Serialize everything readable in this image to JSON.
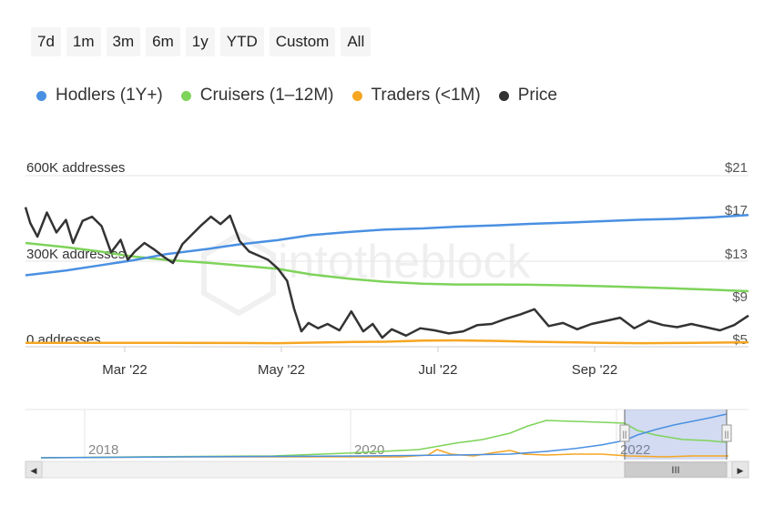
{
  "range_buttons": [
    "7d",
    "1m",
    "3m",
    "6m",
    "1y",
    "YTD",
    "Custom",
    "All"
  ],
  "legend": [
    {
      "label": "Hodlers (1Y+)",
      "color": "#4a90e2"
    },
    {
      "label": "Cruisers (1–12M)",
      "color": "#7ed35a"
    },
    {
      "label": "Traders (<1M)",
      "color": "#f5a623"
    },
    {
      "label": "Price",
      "color": "#333333"
    }
  ],
  "watermark": "intotheblock",
  "chart_data": {
    "type": "line",
    "left_axis": {
      "ticks": [
        "600K addresses",
        "300K addresses",
        "0 addresses"
      ],
      "range": [
        0,
        600000
      ]
    },
    "right_axis": {
      "ticks": [
        "$21",
        "$17",
        "$13",
        "$9",
        "$5"
      ],
      "range": [
        5,
        21
      ]
    },
    "x_ticks": [
      "Mar '22",
      "May '22",
      "Jul '22",
      "Sep '22"
    ],
    "series": [
      {
        "name": "Hodlers (1Y+)",
        "axis": "left",
        "color": "#4a90e2",
        "x": [
          "2022-01-15",
          "2022-02-01",
          "2022-02-15",
          "2022-03-01",
          "2022-03-15",
          "2022-04-01",
          "2022-04-15",
          "2022-05-01",
          "2022-05-15",
          "2022-06-01",
          "2022-06-15",
          "2022-07-01",
          "2022-07-15",
          "2022-08-01",
          "2022-08-15",
          "2022-09-01",
          "2022-09-15",
          "2022-10-01",
          "2022-10-15",
          "2022-11-01",
          "2022-11-15"
        ],
        "values": [
          245000,
          262000,
          280000,
          298000,
          320000,
          338000,
          355000,
          370000,
          388000,
          400000,
          408000,
          412000,
          418000,
          423000,
          428000,
          433000,
          438000,
          443000,
          446000,
          452000,
          460000
        ]
      },
      {
        "name": "Cruisers (1–12M)",
        "axis": "left",
        "color": "#7ed35a",
        "x": [
          "2022-01-15",
          "2022-02-01",
          "2022-02-15",
          "2022-03-01",
          "2022-03-15",
          "2022-04-01",
          "2022-04-15",
          "2022-05-01",
          "2022-05-15",
          "2022-06-01",
          "2022-06-15",
          "2022-07-01",
          "2022-07-15",
          "2022-08-01",
          "2022-08-15",
          "2022-09-01",
          "2022-09-15",
          "2022-10-01",
          "2022-10-15",
          "2022-11-01",
          "2022-11-15"
        ],
        "values": [
          360000,
          345000,
          330000,
          312000,
          300000,
          290000,
          280000,
          268000,
          248000,
          232000,
          222000,
          215000,
          212000,
          212000,
          211000,
          209000,
          206000,
          202000,
          198000,
          193000,
          188000
        ]
      },
      {
        "name": "Traders (<1M)",
        "axis": "left",
        "color": "#f5a623",
        "x": [
          "2022-01-15",
          "2022-02-15",
          "2022-03-15",
          "2022-04-15",
          "2022-05-01",
          "2022-05-15",
          "2022-06-01",
          "2022-06-15",
          "2022-07-01",
          "2022-07-15",
          "2022-08-01",
          "2022-08-15",
          "2022-09-01",
          "2022-09-15",
          "2022-10-01",
          "2022-10-15",
          "2022-11-01",
          "2022-11-15"
        ],
        "values": [
          4000,
          4000,
          4000,
          3500,
          3000,
          5000,
          7000,
          8000,
          12000,
          13000,
          11000,
          8000,
          6000,
          4000,
          3000,
          3500,
          5000,
          6000
        ]
      },
      {
        "name": "Price",
        "axis": "right",
        "color": "#333333",
        "x": [
          "2022-01-15",
          "2022-01-17",
          "2022-01-20",
          "2022-01-24",
          "2022-01-28",
          "2022-02-01",
          "2022-02-04",
          "2022-02-08",
          "2022-02-12",
          "2022-02-16",
          "2022-02-20",
          "2022-02-24",
          "2022-02-27",
          "2022-03-02",
          "2022-03-06",
          "2022-03-10",
          "2022-03-14",
          "2022-03-18",
          "2022-03-22",
          "2022-03-26",
          "2022-03-30",
          "2022-04-03",
          "2022-04-07",
          "2022-04-11",
          "2022-04-15",
          "2022-04-19",
          "2022-04-23",
          "2022-04-27",
          "2022-05-01",
          "2022-05-05",
          "2022-05-08",
          "2022-05-11",
          "2022-05-14",
          "2022-05-18",
          "2022-05-22",
          "2022-05-27",
          "2022-06-01",
          "2022-06-06",
          "2022-06-10",
          "2022-06-14",
          "2022-06-18",
          "2022-06-24",
          "2022-06-30",
          "2022-07-06",
          "2022-07-12",
          "2022-07-18",
          "2022-07-24",
          "2022-07-30",
          "2022-08-05",
          "2022-08-11",
          "2022-08-17",
          "2022-08-23",
          "2022-08-29",
          "2022-09-04",
          "2022-09-10",
          "2022-09-16",
          "2022-09-22",
          "2022-09-28",
          "2022-10-04",
          "2022-10-10",
          "2022-10-16",
          "2022-10-22",
          "2022-10-28",
          "2022-11-03",
          "2022-11-09",
          "2022-11-15"
        ],
        "values": [
          18.0,
          16.5,
          15.2,
          17.5,
          15.6,
          16.8,
          14.6,
          16.7,
          17.1,
          16.2,
          13.7,
          14.9,
          13.0,
          13.8,
          14.6,
          14.0,
          13.3,
          12.7,
          14.5,
          15.4,
          16.3,
          17.1,
          16.4,
          17.2,
          14.8,
          13.8,
          13.4,
          13.0,
          12.2,
          11.0,
          8.3,
          6.2,
          7.0,
          6.5,
          6.9,
          6.3,
          8.1,
          6.2,
          6.9,
          5.6,
          6.4,
          5.8,
          6.5,
          6.3,
          6.0,
          6.2,
          6.8,
          6.9,
          7.4,
          7.8,
          8.3,
          6.7,
          7.0,
          6.4,
          6.9,
          7.2,
          7.5,
          6.5,
          7.2,
          6.8,
          6.6,
          6.9,
          6.6,
          6.3,
          6.8,
          7.7
        ]
      }
    ]
  },
  "navigator": {
    "labels": [
      "2018",
      "2020",
      "2022"
    ],
    "scroll_thumb_symbol": "III",
    "handle_symbol": "||",
    "left_arrow": "◀",
    "right_arrow": "▶"
  }
}
